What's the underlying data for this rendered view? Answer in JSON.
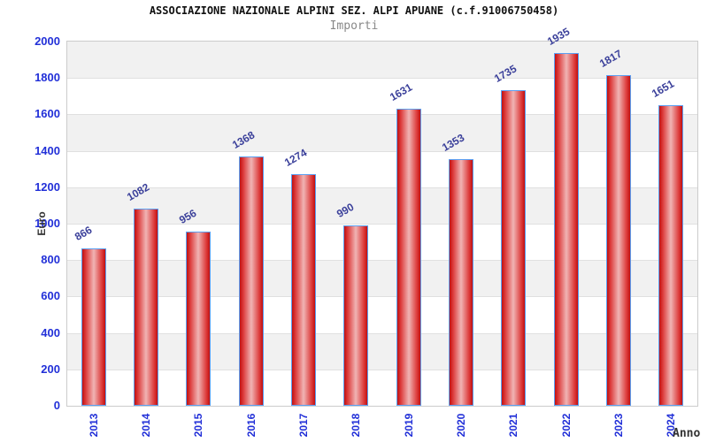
{
  "chart_data": {
    "type": "bar",
    "title": "ASSOCIAZIONE NAZIONALE ALPINI SEZ. ALPI APUANE (c.f.91006750458)",
    "subtitle": "Importi",
    "xlabel": "Anno",
    "ylabel": "Euro",
    "categories": [
      "2013",
      "2014",
      "2015",
      "2016",
      "2017",
      "2018",
      "2019",
      "2020",
      "2021",
      "2022",
      "2023",
      "2024"
    ],
    "values": [
      866,
      1082,
      956,
      1368,
      1274,
      990,
      1631,
      1353,
      1735,
      1935,
      1817,
      1651
    ],
    "ylim": [
      0,
      2000
    ],
    "ytick_step": 200,
    "yticks": [
      0,
      200,
      400,
      600,
      800,
      1000,
      1200,
      1400,
      1600,
      1800,
      2000
    ],
    "grid": "alternating-horizontal-bands",
    "legend_position": "none",
    "bar_value_labels_shown": true,
    "colors": {
      "title": "#111111",
      "subtitle": "#888888",
      "tick_label": "#2230d8",
      "value_label": "#3a3f9a",
      "axis_title": "#333333",
      "bar_border": "#5b9ff2",
      "bar_dark": "#c01010",
      "bar_mid": "#dd3b3b",
      "bar_light": "#f0b4b4",
      "band_gray": "#f1f1f1",
      "band_white": "#ffffff",
      "plot_border": "#cccccc",
      "gridline": "#e0e0e0"
    }
  }
}
